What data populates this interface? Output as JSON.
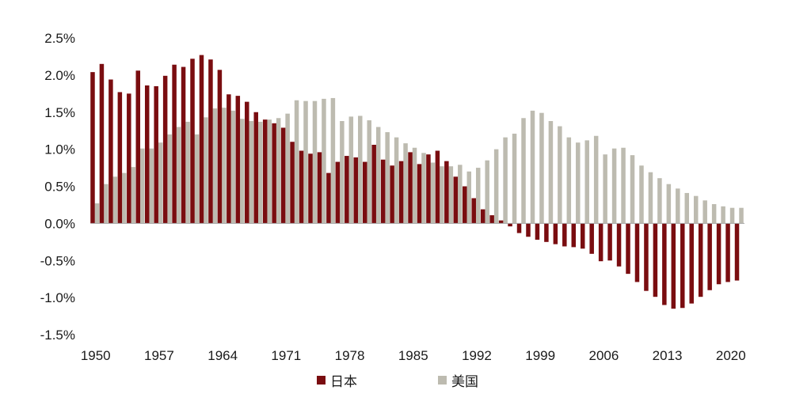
{
  "chart_data": {
    "type": "bar",
    "title": "",
    "xlabel": "",
    "ylabel": "",
    "ylim": [
      -1.5,
      2.5
    ],
    "y_ticks": [
      "2.5%",
      "2.0%",
      "1.5%",
      "1.0%",
      "0.5%",
      "0.0%",
      "-0.5%",
      "-1.0%",
      "-1.5%"
    ],
    "y_tick_values": [
      2.5,
      2.0,
      1.5,
      1.0,
      0.5,
      0.0,
      -0.5,
      -1.0,
      -1.5
    ],
    "x_ticks": [
      "1950",
      "1957",
      "1964",
      "1971",
      "1978",
      "1985",
      "1992",
      "1999",
      "2006",
      "2013",
      "2020"
    ],
    "grid": false,
    "legend_position": "bottom",
    "colors": {
      "japan": "#7a0d10",
      "us": "#bdbbb0"
    },
    "categories": [
      1950,
      1951,
      1952,
      1953,
      1954,
      1955,
      1956,
      1957,
      1958,
      1959,
      1960,
      1961,
      1962,
      1963,
      1964,
      1965,
      1966,
      1967,
      1968,
      1969,
      1970,
      1971,
      1972,
      1973,
      1974,
      1975,
      1976,
      1977,
      1978,
      1979,
      1980,
      1981,
      1982,
      1983,
      1984,
      1985,
      1986,
      1987,
      1988,
      1989,
      1990,
      1991,
      1992,
      1993,
      1994,
      1995,
      1996,
      1997,
      1998,
      1999,
      2000,
      2001,
      2002,
      2003,
      2004,
      2005,
      2006,
      2007,
      2008,
      2009,
      2010,
      2011,
      2012,
      2013,
      2014,
      2015,
      2016,
      2017,
      2018,
      2019,
      2020,
      2021
    ],
    "series": [
      {
        "name": "日本",
        "values": [
          2.04,
          2.15,
          1.94,
          1.77,
          1.75,
          2.06,
          1.86,
          1.85,
          1.99,
          2.14,
          2.11,
          2.22,
          2.27,
          2.21,
          2.07,
          1.74,
          1.72,
          1.64,
          1.5,
          1.4,
          1.35,
          1.29,
          1.1,
          0.98,
          0.94,
          0.96,
          0.68,
          0.83,
          0.91,
          0.89,
          0.83,
          1.06,
          0.86,
          0.78,
          0.84,
          0.96,
          0.8,
          0.93,
          0.98,
          0.84,
          0.63,
          0.5,
          0.34,
          0.19,
          0.11,
          0.04,
          -0.04,
          -0.13,
          -0.18,
          -0.22,
          -0.25,
          -0.28,
          -0.31,
          -0.32,
          -0.34,
          -0.41,
          -0.51,
          -0.5,
          -0.58,
          -0.68,
          -0.79,
          -0.91,
          -0.99,
          -1.1,
          -1.15,
          -1.14,
          -1.08,
          -0.99,
          -0.9,
          -0.82,
          -0.79,
          -0.77
        ]
      },
      {
        "name": "美国",
        "values": [
          0.27,
          0.53,
          0.63,
          0.68,
          0.76,
          1.01,
          1.01,
          1.09,
          1.2,
          1.3,
          1.37,
          1.2,
          1.43,
          1.55,
          1.56,
          1.52,
          1.41,
          1.38,
          1.37,
          1.4,
          1.42,
          1.48,
          1.66,
          1.65,
          1.65,
          1.68,
          1.69,
          1.38,
          1.44,
          1.45,
          1.39,
          1.3,
          1.23,
          1.16,
          1.08,
          1.02,
          0.95,
          0.82,
          0.77,
          0.77,
          0.79,
          0.7,
          0.75,
          0.85,
          1.0,
          1.16,
          1.21,
          1.42,
          1.52,
          1.49,
          1.38,
          1.31,
          1.16,
          1.09,
          1.12,
          1.18,
          0.93,
          1.01,
          1.02,
          0.92,
          0.78,
          0.69,
          0.61,
          0.53,
          0.47,
          0.41,
          0.37,
          0.31,
          0.26,
          0.23,
          0.21,
          0.21
        ]
      }
    ]
  },
  "legend": {
    "japan_label": "日本",
    "us_label": "美国"
  }
}
